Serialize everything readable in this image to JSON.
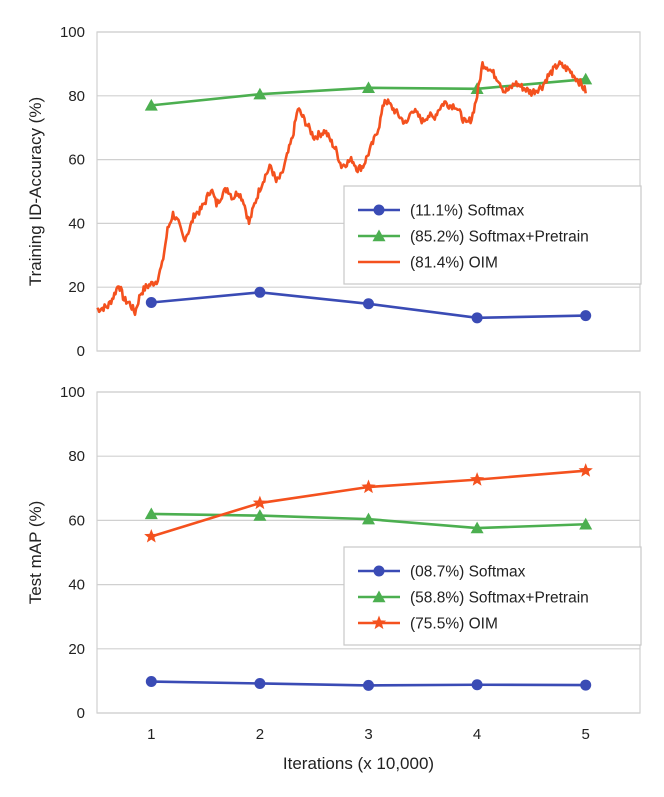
{
  "chart_data": [
    {
      "type": "line",
      "ylabel": "Training ID-Accuracy (%)",
      "xlabel": "",
      "ylim": [
        0,
        100
      ],
      "xlim": [
        0.5,
        5.5
      ],
      "yticks": [
        "0",
        "20",
        "40",
        "60",
        "80",
        "100"
      ],
      "xticks": [
        "1",
        "2",
        "3",
        "4",
        "5"
      ],
      "grid": true,
      "legend_placement": "lower-right",
      "series": [
        {
          "name": "(11.1%) Softmax",
          "color": "#3a4bb5",
          "marker": "circle",
          "x": [
            1,
            2,
            3,
            4,
            5
          ],
          "values": [
            15.2,
            18.4,
            14.8,
            10.4,
            11.1
          ]
        },
        {
          "name": "(85.2%) Softmax+Pretrain",
          "color": "#4caf50",
          "marker": "triangle",
          "x": [
            1,
            2,
            3,
            4,
            5
          ],
          "values": [
            77,
            80.5,
            82.5,
            82.2,
            85.2
          ]
        },
        {
          "name": "(81.4%) OIM",
          "color": "#f4511e",
          "marker": "none",
          "anchors_x": [
            0.5,
            0.6,
            0.65,
            0.7,
            0.75,
            0.8,
            0.85,
            0.9,
            0.95,
            1.0,
            1.05,
            1.1,
            1.15,
            1.2,
            1.25,
            1.3,
            1.35,
            1.4,
            1.45,
            1.5,
            1.55,
            1.6,
            1.65,
            1.7,
            1.75,
            1.8,
            1.85,
            1.9,
            1.95,
            2.0,
            2.05,
            2.1,
            2.15,
            2.2,
            2.25,
            2.3,
            2.35,
            2.4,
            2.45,
            2.5,
            2.55,
            2.6,
            2.65,
            2.7,
            2.75,
            2.8,
            2.85,
            2.9,
            2.95,
            3.0,
            3.05,
            3.1,
            3.15,
            3.2,
            3.25,
            3.3,
            3.35,
            3.4,
            3.45,
            3.5,
            3.55,
            3.6,
            3.65,
            3.7,
            3.75,
            3.8,
            3.85,
            3.9,
            3.95,
            4.0,
            4.05,
            4.1,
            4.15,
            4.2,
            4.25,
            4.3,
            4.35,
            4.4,
            4.45,
            4.5,
            4.55,
            4.6,
            4.65,
            4.7,
            4.75,
            4.8,
            4.85,
            4.9,
            4.95,
            5.0
          ],
          "anchors_y": [
            13,
            14,
            17,
            21,
            16,
            15,
            12,
            18,
            20,
            21,
            22,
            27,
            38,
            43,
            40,
            35,
            38,
            43,
            44,
            47,
            51,
            46,
            49,
            51,
            48,
            50,
            47,
            40,
            46,
            51,
            55,
            58,
            53,
            55,
            61,
            67,
            76,
            73,
            70,
            67,
            68,
            69,
            66,
            63,
            58,
            59,
            60,
            57,
            58,
            62,
            66,
            71,
            79,
            77,
            75,
            73,
            71,
            76,
            74,
            72,
            74,
            73,
            76,
            78,
            77,
            77,
            74,
            71,
            73,
            80,
            90,
            89,
            87,
            85,
            81.4,
            82,
            84,
            83,
            82,
            81,
            82,
            83,
            86,
            88,
            90,
            89,
            88,
            86,
            84,
            81.4
          ],
          "noise_amplitude": 1.2
        }
      ]
    },
    {
      "type": "line",
      "ylabel": "Test mAP (%)",
      "xlabel": "Iterations (x 10,000)",
      "ylim": [
        0,
        100
      ],
      "xlim": [
        0.5,
        5.5
      ],
      "yticks": [
        "0",
        "20",
        "40",
        "60",
        "80",
        "100"
      ],
      "xticks": [
        "1",
        "2",
        "3",
        "4",
        "5"
      ],
      "grid": true,
      "legend_placement": "lower-right",
      "series": [
        {
          "name": "(08.7%) Softmax",
          "color": "#3a4bb5",
          "marker": "circle",
          "x": [
            1,
            2,
            3,
            4,
            5
          ],
          "values": [
            9.8,
            9.2,
            8.6,
            8.8,
            8.7
          ]
        },
        {
          "name": "(58.8%) Softmax+Pretrain",
          "color": "#4caf50",
          "marker": "triangle",
          "x": [
            1,
            2,
            3,
            4,
            5
          ],
          "values": [
            62,
            61.5,
            60.4,
            57.6,
            58.8
          ]
        },
        {
          "name": "(75.5%) OIM",
          "color": "#f4511e",
          "marker": "star",
          "x": [
            1,
            2,
            3,
            4,
            5
          ],
          "values": [
            55,
            65.4,
            70.4,
            72.7,
            75.5
          ]
        }
      ]
    }
  ]
}
